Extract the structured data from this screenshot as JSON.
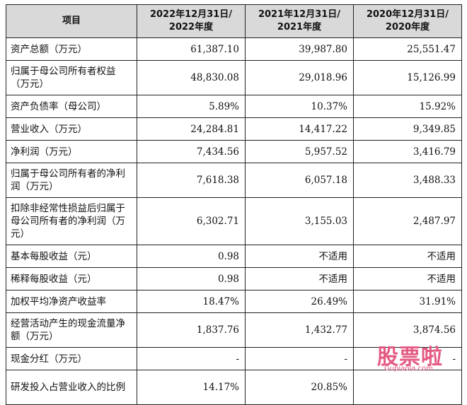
{
  "table": {
    "headers": [
      "项目",
      "2022年12月31日/\n2022年度",
      "2021年12月31日/\n2021年度",
      "2020年12月31日/\n2020年度"
    ],
    "rows": [
      {
        "label": "资产总额（万元）",
        "values": [
          "61,387.10",
          "39,987.80",
          "25,551.47"
        ]
      },
      {
        "label": "归属于母公司所有者权益（万元）",
        "values": [
          "48,830.08",
          "29,018.96",
          "15,126.99"
        ]
      },
      {
        "label": "资产负债率（母公司）",
        "values": [
          "5.89%",
          "10.37%",
          "15.92%"
        ]
      },
      {
        "label": "营业收入（万元）",
        "values": [
          "24,284.81",
          "14,417.22",
          "9,349.85"
        ]
      },
      {
        "label": "净利润（万元）",
        "values": [
          "7,434.56",
          "5,957.52",
          "3,416.79"
        ]
      },
      {
        "label": "归属于母公司所有者的净利润（万元）",
        "values": [
          "7,618.38",
          "6,057.18",
          "3,488.33"
        ]
      },
      {
        "label": "扣除非经常性损益后归属于母公司所有者的净利润（万元）",
        "values": [
          "6,302.71",
          "3,155.03",
          "2,487.97"
        ]
      },
      {
        "label": "基本每股收益（元）",
        "values": [
          "0.98",
          "不适用",
          "不适用"
        ]
      },
      {
        "label": "稀释每股收益（元）",
        "values": [
          "0.98",
          "不适用",
          "不适用"
        ]
      },
      {
        "label": "加权平均净资产收益率",
        "values": [
          "18.47%",
          "26.49%",
          "31.91%"
        ]
      },
      {
        "label": "经营活动产生的现金流量净额（万元）",
        "values": [
          "1,837.76",
          "1,432.77",
          "3,874.56"
        ]
      },
      {
        "label": "现金分红（万元）",
        "values": [
          "-",
          "-",
          "-"
        ]
      },
      {
        "label": "研发投入占营业收入的比例",
        "values": [
          "14.17%",
          "20.85%",
          ""
        ]
      }
    ]
  },
  "watermark": {
    "logo": "股票啦",
    "domain": "Gupiaola.com",
    "color": "#e45a82"
  }
}
